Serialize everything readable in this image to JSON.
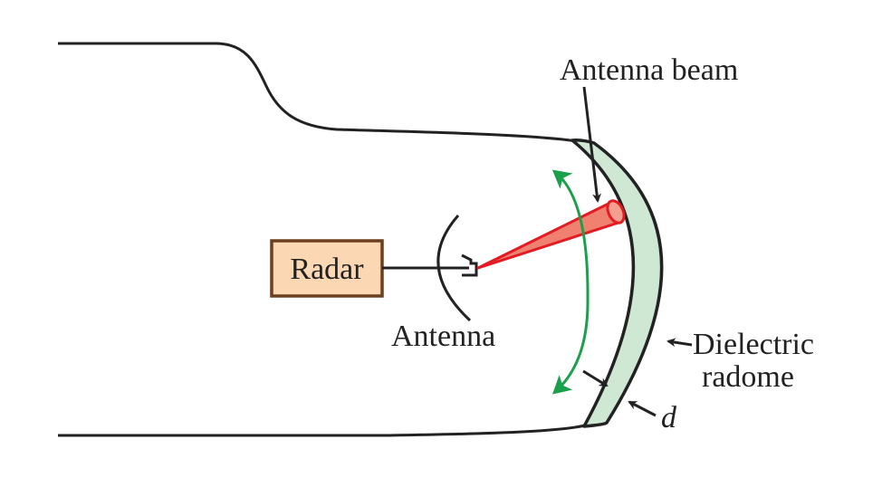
{
  "labels": {
    "antenna_beam": "Antenna beam",
    "radar": "Radar",
    "antenna": "Antenna",
    "dielectric": "Dielectric",
    "radome": "radome",
    "d": "d"
  },
  "colors": {
    "outline": "#222222",
    "radome_fill": "#cfe8d4",
    "radar_box_fill": "#fbd7b3",
    "radar_box_stroke": "#6b3f1f",
    "beam_fill": "#f08070",
    "beam_stroke": "#e31b23",
    "scan_arrow": "#1aa04a"
  }
}
